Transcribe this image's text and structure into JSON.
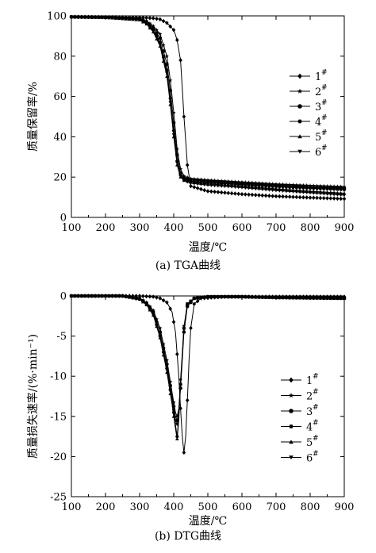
{
  "chart_data": [
    {
      "type": "line",
      "caption": "(a) TGA曲线",
      "xlabel": "温度/℃",
      "ylabel": "质量保留率/%",
      "xlim": [
        100,
        900
      ],
      "ylim": [
        0,
        100
      ],
      "xticks": [
        100,
        200,
        300,
        400,
        500,
        600,
        700,
        800,
        900
      ],
      "yticks": [
        0,
        20,
        40,
        60,
        80,
        100
      ],
      "legend_position": "center-right",
      "grid": false,
      "series": [
        {
          "name": "1",
          "marker": "diamond",
          "x": [
            100,
            200,
            300,
            340,
            360,
            380,
            400,
            410,
            420,
            430,
            440,
            450,
            500,
            600,
            700,
            800,
            900
          ],
          "y": [
            99.5,
            99.4,
            99.2,
            98.8,
            98.3,
            96.5,
            93,
            88,
            78,
            50,
            26,
            15.5,
            13,
            11.5,
            10.5,
            9.8,
            9.2
          ]
        },
        {
          "name": "2",
          "marker": "star",
          "x": [
            100,
            200,
            300,
            320,
            340,
            360,
            380,
            390,
            400,
            410,
            420,
            430,
            450,
            500,
            600,
            700,
            800,
            900
          ],
          "y": [
            99.5,
            99.3,
            98.8,
            97.5,
            95,
            91,
            80,
            68,
            52,
            34,
            24,
            20.5,
            19.2,
            18.5,
            17.5,
            16.5,
            15.8,
            15.2
          ]
        },
        {
          "name": "3",
          "marker": "circle",
          "x": [
            100,
            200,
            300,
            320,
            340,
            360,
            380,
            390,
            400,
            410,
            420,
            430,
            450,
            500,
            600,
            700,
            800,
            900
          ],
          "y": [
            99.5,
            99.3,
            98.5,
            97,
            94,
            89,
            76,
            63,
            47,
            31,
            22,
            19.5,
            18.8,
            18,
            17,
            16,
            15,
            14.5
          ]
        },
        {
          "name": "4",
          "marker": "hexagon",
          "x": [
            100,
            200,
            300,
            320,
            340,
            360,
            380,
            390,
            400,
            410,
            420,
            430,
            450,
            500,
            600,
            700,
            800,
            900
          ],
          "y": [
            99.5,
            99.2,
            98.3,
            96.5,
            93,
            87,
            73,
            59,
            43,
            28,
            21,
            19,
            18,
            17.2,
            16.3,
            15.3,
            14.5,
            13.8
          ]
        },
        {
          "name": "5",
          "marker": "triangle-up",
          "x": [
            100,
            200,
            300,
            320,
            340,
            360,
            380,
            390,
            400,
            410,
            420,
            430,
            450,
            500,
            600,
            700,
            800,
            900
          ],
          "y": [
            99.5,
            99.2,
            98,
            96,
            92,
            85,
            70,
            56,
            40,
            26,
            20,
            18.5,
            17.5,
            16.6,
            15.5,
            14.2,
            13,
            12
          ]
        },
        {
          "name": "6",
          "marker": "triangle-down",
          "x": [
            100,
            200,
            300,
            320,
            340,
            360,
            380,
            390,
            400,
            410,
            420,
            430,
            450,
            500,
            600,
            700,
            800,
            900
          ],
          "y": [
            99.5,
            99.2,
            98.2,
            96.2,
            92.5,
            86,
            71.5,
            57,
            41,
            27,
            20.5,
            18.2,
            17,
            16,
            14.8,
            13.3,
            12.2,
            11
          ]
        }
      ]
    },
    {
      "type": "line",
      "caption": "(b) DTG曲线",
      "xlabel": "温度/℃",
      "ylabel": "质量损失速率/(%·min⁻¹)",
      "xlim": [
        100,
        900
      ],
      "ylim": [
        -25,
        0
      ],
      "xticks": [
        100,
        200,
        300,
        400,
        500,
        600,
        700,
        800,
        900
      ],
      "yticks": [
        0,
        -5,
        -10,
        -15,
        -20,
        -25
      ],
      "legend_position": "center-right",
      "grid": false,
      "series": [
        {
          "name": "1",
          "marker": "diamond",
          "x": [
            100,
            300,
            340,
            360,
            380,
            395,
            405,
            415,
            420,
            425,
            430,
            435,
            440,
            445,
            450,
            460,
            480,
            550,
            700,
            900
          ],
          "y": [
            0,
            0,
            -0.1,
            -0.3,
            -0.8,
            -2,
            -4.5,
            -10,
            -14,
            -17.5,
            -19.5,
            -17.5,
            -13,
            -8,
            -4,
            -1,
            -0.3,
            -0.1,
            -0.1,
            -0.1
          ]
        },
        {
          "name": "2",
          "marker": "star",
          "x": [
            100,
            250,
            300,
            320,
            340,
            360,
            380,
            395,
            405,
            410,
            415,
            420,
            430,
            440,
            460,
            500,
            600,
            700,
            900
          ],
          "y": [
            0,
            0,
            -0.3,
            -0.8,
            -1.8,
            -4,
            -8,
            -12,
            -14.5,
            -15,
            -14,
            -11,
            -4,
            -1.2,
            -0.3,
            -0.1,
            -0.1,
            -0.2,
            -0.3
          ]
        },
        {
          "name": "3",
          "marker": "circle",
          "x": [
            100,
            250,
            300,
            320,
            340,
            360,
            380,
            395,
            405,
            410,
            415,
            420,
            430,
            440,
            460,
            500,
            600,
            700,
            900
          ],
          "y": [
            0,
            0,
            -0.3,
            -0.9,
            -2,
            -4.5,
            -8.5,
            -12.5,
            -15,
            -15.5,
            -14.5,
            -11.5,
            -4.5,
            -1.3,
            -0.3,
            -0.1,
            -0.1,
            -0.2,
            -0.3
          ]
        },
        {
          "name": "4",
          "marker": "hexagon",
          "x": [
            100,
            250,
            300,
            320,
            340,
            360,
            380,
            395,
            405,
            410,
            415,
            420,
            430,
            440,
            460,
            500,
            600,
            700,
            900
          ],
          "y": [
            0,
            0,
            -0.4,
            -1,
            -2.2,
            -5,
            -9,
            -13,
            -16,
            -17.5,
            -15,
            -11,
            -4,
            -1,
            -0.3,
            -0.1,
            -0.1,
            -0.2,
            -0.3
          ]
        },
        {
          "name": "5",
          "marker": "triangle-up",
          "x": [
            100,
            250,
            300,
            320,
            340,
            360,
            380,
            395,
            405,
            410,
            415,
            420,
            430,
            440,
            460,
            500,
            600,
            700,
            900
          ],
          "y": [
            0,
            0,
            -0.4,
            -1.1,
            -2.4,
            -5.2,
            -9.5,
            -13.5,
            -16.5,
            -17.8,
            -15.5,
            -11,
            -4,
            -1,
            -0.3,
            -0.1,
            -0.1,
            -0.2,
            -0.3
          ]
        },
        {
          "name": "6",
          "marker": "triangle-down",
          "x": [
            100,
            250,
            300,
            320,
            340,
            360,
            380,
            395,
            405,
            410,
            415,
            420,
            430,
            440,
            460,
            500,
            600,
            700,
            900
          ],
          "y": [
            0,
            0,
            -0.4,
            -1,
            -2.3,
            -5,
            -9.2,
            -13.2,
            -15.5,
            -16,
            -14.5,
            -10.5,
            -3.8,
            -1,
            -0.3,
            -0.1,
            -0.1,
            -0.2,
            -0.3
          ]
        }
      ]
    }
  ]
}
